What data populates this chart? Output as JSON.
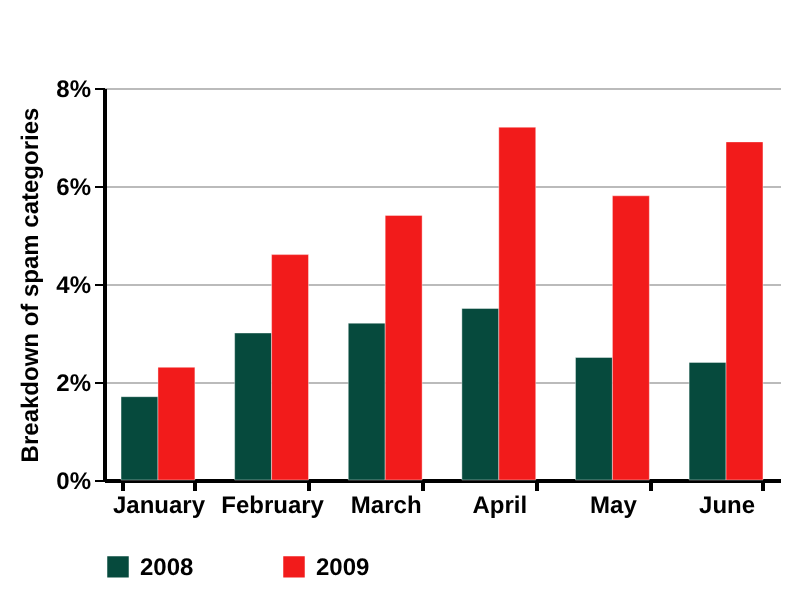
{
  "chart_data": {
    "type": "bar",
    "ylabel": "Breakdown of spam categories",
    "categories": [
      "January",
      "February",
      "March",
      "April",
      "May",
      "June"
    ],
    "series": [
      {
        "name": "2008",
        "color": "#064a3d",
        "values": [
          1.7,
          3.0,
          3.2,
          3.5,
          2.5,
          2.4
        ]
      },
      {
        "name": "2009",
        "color": "#f21b1b",
        "values": [
          2.3,
          4.6,
          5.4,
          7.2,
          5.8,
          6.9
        ]
      }
    ],
    "ylim": [
      0,
      8
    ],
    "yticks": [
      {
        "value": 0,
        "label": "0%"
      },
      {
        "value": 2,
        "label": "2%"
      },
      {
        "value": 4,
        "label": "4%"
      },
      {
        "value": 6,
        "label": "6%"
      },
      {
        "value": 8,
        "label": "8%"
      }
    ],
    "grid": "y",
    "legend": "bottom"
  }
}
